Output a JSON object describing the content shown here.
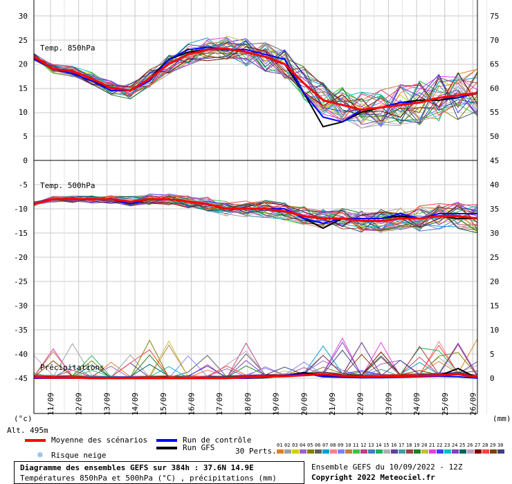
{
  "chart_data": {
    "type": "line",
    "panels": [
      {
        "label": "Temp. 850hPa",
        "left_axis_ticks": [
          "30",
          "25",
          "20",
          "15",
          "10",
          "5",
          "0"
        ],
        "right_axis_ticks": [
          "75",
          "70",
          "65",
          "60",
          "55",
          "50",
          "45"
        ]
      },
      {
        "label": "Temp. 500hPa",
        "left_axis_ticks": [
          "-5",
          "-10",
          "-15",
          "-20",
          "-25",
          "-30",
          "-35",
          "-40",
          "-45"
        ],
        "right_axis_ticks": [
          "40",
          "35",
          "30",
          "25",
          "20",
          "15",
          "10",
          "5",
          "0"
        ]
      },
      {
        "label": "Précipitations"
      }
    ],
    "x_labels": [
      "11/09",
      "12/09",
      "13/09",
      "14/09",
      "15/09",
      "16/09",
      "17/09",
      "18/09",
      "19/09",
      "20/09",
      "21/09",
      "22/09",
      "23/09",
      "24/09",
      "25/09",
      "26/09"
    ],
    "left_unit": "(°c)",
    "right_unit": "(mm)",
    "series": [
      {
        "name": "Moyenne des scénarios",
        "color": "#ff0000",
        "t850": [
          21.5,
          19,
          18.5,
          17,
          15,
          14.5,
          17,
          20,
          22,
          23,
          23.2,
          22.5,
          21.5,
          20,
          16,
          12.5,
          11.5,
          10.5,
          11,
          11.5,
          12,
          13,
          13.5,
          14
        ],
        "t500": [
          -9,
          -8,
          -8,
          -8,
          -8,
          -8.5,
          -8,
          -8,
          -8.5,
          -9,
          -10,
          -10,
          -10,
          -10.5,
          -11.5,
          -12,
          -12,
          -12.5,
          -12.5,
          -12,
          -12,
          -11.5,
          -11.5,
          -12
        ],
        "precip": [
          0.2,
          0.1,
          0.1,
          0,
          0,
          0,
          0,
          0,
          0,
          0,
          0,
          0.2,
          0.3,
          0.4,
          0.6,
          0.8,
          0.5,
          0.3,
          0.3,
          0.4,
          0.5,
          0.6,
          0.8,
          0.2
        ]
      },
      {
        "name": "Run de contrôle",
        "color": "#0000ff",
        "t850": [
          21,
          19,
          18,
          16.5,
          14.5,
          14.5,
          16.5,
          21,
          23,
          23.5,
          23,
          23,
          22,
          21,
          14,
          9,
          8,
          10.5,
          11,
          12,
          12,
          13,
          13,
          14
        ],
        "t500": [
          -9,
          -8,
          -8,
          -8,
          -8,
          -9,
          -8,
          -8,
          -8.5,
          -9,
          -10,
          -10,
          -10,
          -10,
          -12,
          -13,
          -12,
          -12,
          -12,
          -11,
          -12,
          -11,
          -11,
          -11
        ],
        "precip": [
          0,
          0,
          0,
          0,
          0,
          0,
          0,
          0,
          0,
          0,
          0,
          0,
          0.2,
          0.5,
          1,
          0.3,
          0.2,
          0.1,
          0.1,
          0.2,
          0.3,
          0.4,
          0.3,
          0
        ]
      },
      {
        "name": "Run GFS",
        "color": "#000000",
        "t850": [
          21,
          19,
          18,
          16.5,
          15,
          14.5,
          17,
          21,
          22.5,
          23,
          23,
          22.5,
          21.5,
          20,
          14,
          7,
          8,
          10,
          11,
          12,
          12.5,
          12.5,
          13,
          14
        ],
        "t500": [
          -9,
          -8,
          -8,
          -8,
          -8,
          -9,
          -8,
          -8,
          -8.5,
          -9,
          -10,
          -10,
          -10,
          -10,
          -12,
          -14,
          -12,
          -12,
          -12,
          -11.5,
          -12,
          -11.5,
          -12,
          -12
        ],
        "precip": [
          0,
          0,
          0,
          0,
          0,
          0,
          0,
          0,
          0,
          0,
          0,
          0,
          0.1,
          0.5,
          1.2,
          0.5,
          0.3,
          0.1,
          0.2,
          0.3,
          0.4,
          0.5,
          2,
          0
        ]
      }
    ],
    "perturbations_label": "30 Perts.",
    "perturbation_numbers": [
      "01",
      "02",
      "03",
      "04",
      "05",
      "06",
      "07",
      "08",
      "09",
      "10",
      "11",
      "12",
      "13",
      "14",
      "15",
      "16",
      "17",
      "18",
      "19",
      "20",
      "21",
      "22",
      "23",
      "24",
      "25",
      "26",
      "27",
      "28",
      "29",
      "30"
    ],
    "perturbation_colors": [
      "#e08020",
      "#a0a0a0",
      "#d0d000",
      "#a060d0",
      "#808000",
      "#606060",
      "#00a0d0",
      "#ff8080",
      "#8080ff",
      "#c08040",
      "#40c040",
      "#c04080",
      "#4080c0",
      "#20b060",
      "#b0b0b0",
      "#6040a0",
      "#40a0a0",
      "#a04040",
      "#208020",
      "#c0c040",
      "#e040e0",
      "#4040ff",
      "#00c0c0",
      "#8040c0",
      "#006060",
      "#c0a0c0",
      "#800000",
      "#ff4040",
      "#804000",
      "#404080"
    ]
  },
  "legend": {
    "mean_label": "Moyenne des scénarios",
    "control_label": "Run de contrôle",
    "gfs_label": "Run GFS",
    "snow_label": "Risque neige",
    "altitude": "Alt. 495m"
  },
  "footer": {
    "title": "Diagramme des ensembles GEFS sur 384h : 37.6N 14.9E",
    "subtitle": "Températures 850hPa et 500hPa (°C) , précipitations (mm)",
    "run": "Ensemble GEFS du 10/09/2022 - 12Z",
    "copyright": "Copyright 2022 Meteociel.fr"
  }
}
